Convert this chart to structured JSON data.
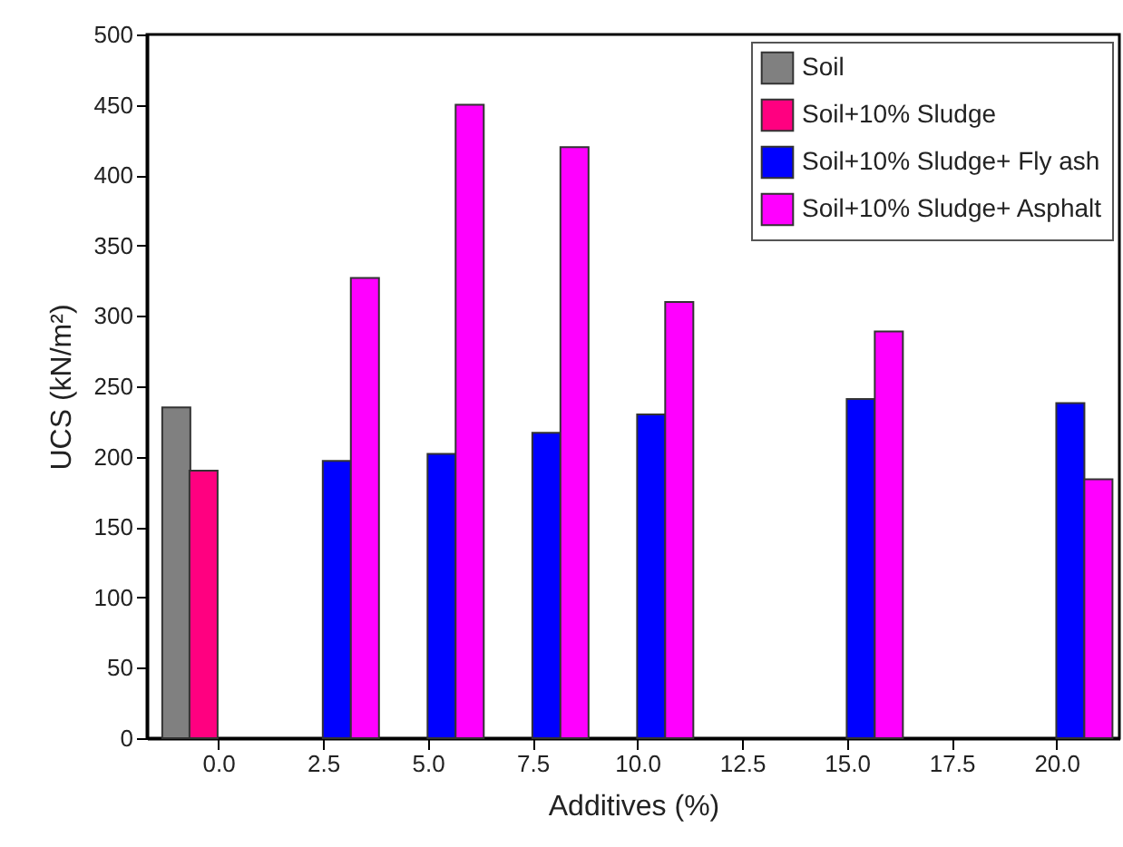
{
  "chart_data": {
    "type": "bar",
    "xlabel": "Additives (%)",
    "ylabel": "UCS (kN/m²)",
    "xlim": [
      -1.7,
      21.5
    ],
    "xticks": [
      {
        "value": 0,
        "label": "0.0"
      },
      {
        "value": 2.5,
        "label": "2.5"
      },
      {
        "value": 5,
        "label": "5.0"
      },
      {
        "value": 7.5,
        "label": "7.5"
      },
      {
        "value": 10,
        "label": "10.0"
      },
      {
        "value": 12.5,
        "label": "12.5"
      },
      {
        "value": 15,
        "label": "15.0"
      },
      {
        "value": 17.5,
        "label": "17.5"
      },
      {
        "value": 20,
        "label": "20.0"
      }
    ],
    "ylim": [
      0,
      500
    ],
    "yticks": [
      0,
      50,
      100,
      150,
      200,
      250,
      300,
      350,
      400,
      450,
      500
    ],
    "grid": false,
    "legend": "top right",
    "series": [
      {
        "name": "Soil",
        "color": "#808080",
        "x": [
          -1.0
        ],
        "values": [
          235
        ]
      },
      {
        "name": "Soil+10% Sludge",
        "color": "#ff0080",
        "x": [
          -0.35
        ],
        "values": [
          190
        ]
      },
      {
        "name": "Soil+10% Sludge+ Fly ash",
        "color": "#0000ff",
        "x": [
          2.83,
          5.33,
          7.83,
          10.33,
          15.33,
          20.33
        ],
        "values": [
          197,
          202,
          217,
          230,
          241,
          238
        ]
      },
      {
        "name": "Soil+10% Sludge+ Asphalt",
        "color": "#ff00ff",
        "x": [
          3.5,
          6.0,
          8.5,
          11.0,
          16.0,
          21.0
        ],
        "values": [
          327,
          450,
          420,
          310,
          289,
          184
        ]
      }
    ]
  }
}
